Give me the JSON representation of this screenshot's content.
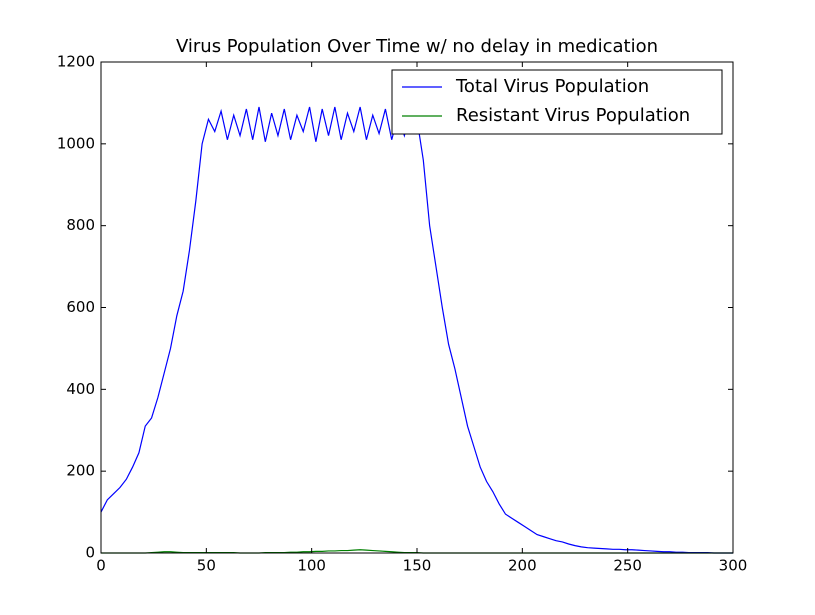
{
  "chart_data": {
    "type": "line",
    "title": "Virus Population Over Time w/ no delay in medication",
    "x": [
      0,
      3,
      6,
      9,
      12,
      15,
      18,
      21,
      24,
      27,
      30,
      33,
      36,
      39,
      42,
      45,
      48,
      51,
      54,
      57,
      60,
      63,
      66,
      69,
      72,
      75,
      78,
      81,
      84,
      87,
      90,
      93,
      96,
      99,
      102,
      105,
      108,
      111,
      114,
      117,
      120,
      123,
      126,
      129,
      132,
      135,
      138,
      141,
      144,
      147,
      150,
      153,
      156,
      159,
      162,
      165,
      168,
      171,
      174,
      177,
      180,
      183,
      186,
      189,
      192,
      195,
      198,
      201,
      204,
      207,
      210,
      213,
      216,
      219,
      222,
      225,
      228,
      231,
      234,
      237,
      240,
      243,
      246,
      249,
      252,
      255,
      258,
      261,
      264,
      267,
      270,
      273,
      276,
      279,
      282,
      285,
      288,
      291,
      294,
      297,
      300
    ],
    "series": [
      {
        "name": "Total Virus Population",
        "color": "#0000ff",
        "values": [
          100,
          130,
          145,
          160,
          180,
          210,
          245,
          310,
          330,
          380,
          440,
          500,
          580,
          640,
          740,
          860,
          1000,
          1060,
          1030,
          1080,
          1010,
          1070,
          1020,
          1085,
          1010,
          1090,
          1005,
          1075,
          1020,
          1085,
          1010,
          1070,
          1030,
          1090,
          1005,
          1085,
          1020,
          1090,
          1010,
          1075,
          1030,
          1090,
          1010,
          1070,
          1025,
          1085,
          1010,
          1070,
          1020,
          1080,
          1060,
          960,
          800,
          700,
          600,
          510,
          450,
          380,
          310,
          260,
          210,
          175,
          150,
          120,
          95,
          85,
          75,
          65,
          55,
          45,
          40,
          35,
          30,
          27,
          22,
          18,
          15,
          13,
          12,
          11,
          10,
          9,
          9,
          8,
          8,
          7,
          6,
          5,
          4,
          3,
          3,
          2,
          2,
          1,
          1,
          1,
          1,
          0,
          0,
          0,
          0
        ]
      },
      {
        "name": "Resistant Virus Population",
        "color": "#008000",
        "values": [
          0,
          0,
          0,
          0,
          0,
          0,
          0,
          0,
          1,
          2,
          3,
          3,
          2,
          1,
          1,
          1,
          1,
          1,
          1,
          1,
          1,
          1,
          0,
          0,
          0,
          0,
          1,
          1,
          1,
          1,
          2,
          2,
          3,
          3,
          4,
          4,
          5,
          5,
          6,
          6,
          7,
          8,
          7,
          6,
          5,
          4,
          3,
          2,
          1,
          1,
          1,
          0,
          0,
          0,
          0,
          0,
          0,
          0,
          0,
          0,
          0,
          0,
          0,
          0,
          0,
          0,
          0,
          0,
          0,
          0,
          0,
          0,
          0,
          0,
          0,
          0,
          0,
          0,
          0,
          0,
          0,
          0,
          0,
          0,
          0,
          0,
          0,
          0,
          0,
          0,
          0,
          0,
          0,
          0,
          0,
          0,
          0,
          0,
          0,
          0,
          0
        ]
      }
    ],
    "xlim": [
      0,
      300
    ],
    "xticks": [
      0,
      50,
      100,
      150,
      200,
      250,
      300
    ],
    "ylim": [
      0,
      1200
    ],
    "yticks": [
      0,
      200,
      400,
      600,
      800,
      1000,
      1200
    ],
    "legend": "upper right"
  }
}
